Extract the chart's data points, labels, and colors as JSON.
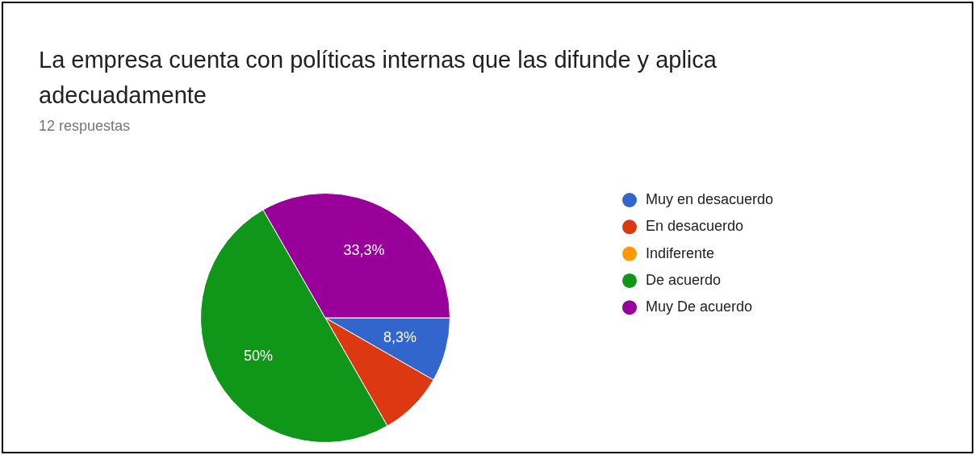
{
  "chart_data": {
    "type": "pie",
    "title": "La empresa cuenta con políticas internas que las difunde y aplica adecuadamente",
    "subtitle": "12 respuestas",
    "categories": [
      "Muy en desacuerdo",
      "En desacuerdo",
      "Indiferente",
      "De acuerdo",
      "Muy De acuerdo"
    ],
    "values": [
      8.3,
      8.4,
      0,
      50,
      33.3
    ],
    "colors": [
      "#3366cc",
      "#dc3912",
      "#ff9900",
      "#109618",
      "#990099"
    ],
    "value_labels": [
      "8,3%",
      null,
      null,
      "50%",
      "33,3%"
    ],
    "legend": "right"
  }
}
